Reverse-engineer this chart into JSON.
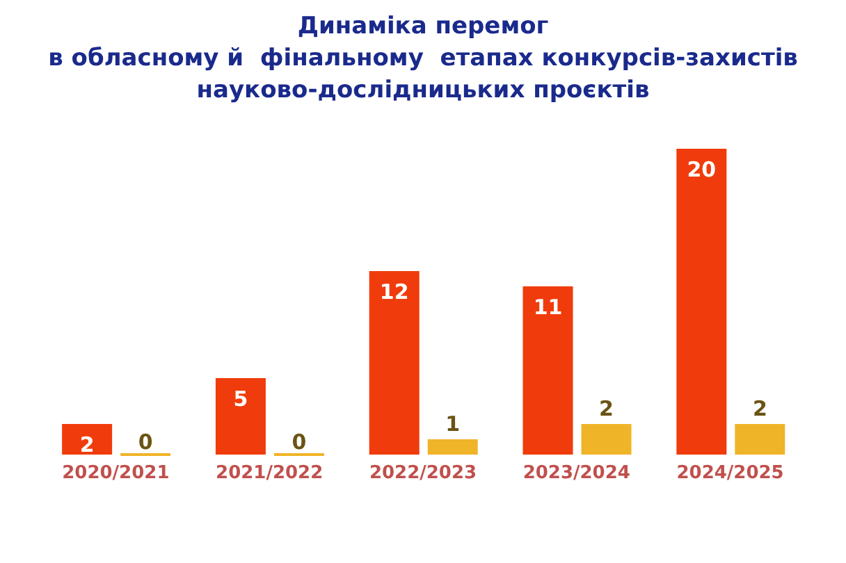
{
  "chart_data": {
    "type": "bar",
    "title": "Динаміка перемог\nв обласному й  фінальному  етапах конкурсів-захистів\nнауково-дослідницьких проєктів",
    "categories": [
      "2020/2021",
      "2021/2022",
      "2022/2023",
      "2023/2024",
      "2024/2025"
    ],
    "series": [
      {
        "color": "#f03c0c",
        "values": [
          2,
          5,
          12,
          11,
          20
        ]
      },
      {
        "color": "#f0b428",
        "values": [
          0,
          0,
          1,
          2,
          2
        ]
      }
    ],
    "data_labels": true,
    "legend": false,
    "grid": false
  }
}
